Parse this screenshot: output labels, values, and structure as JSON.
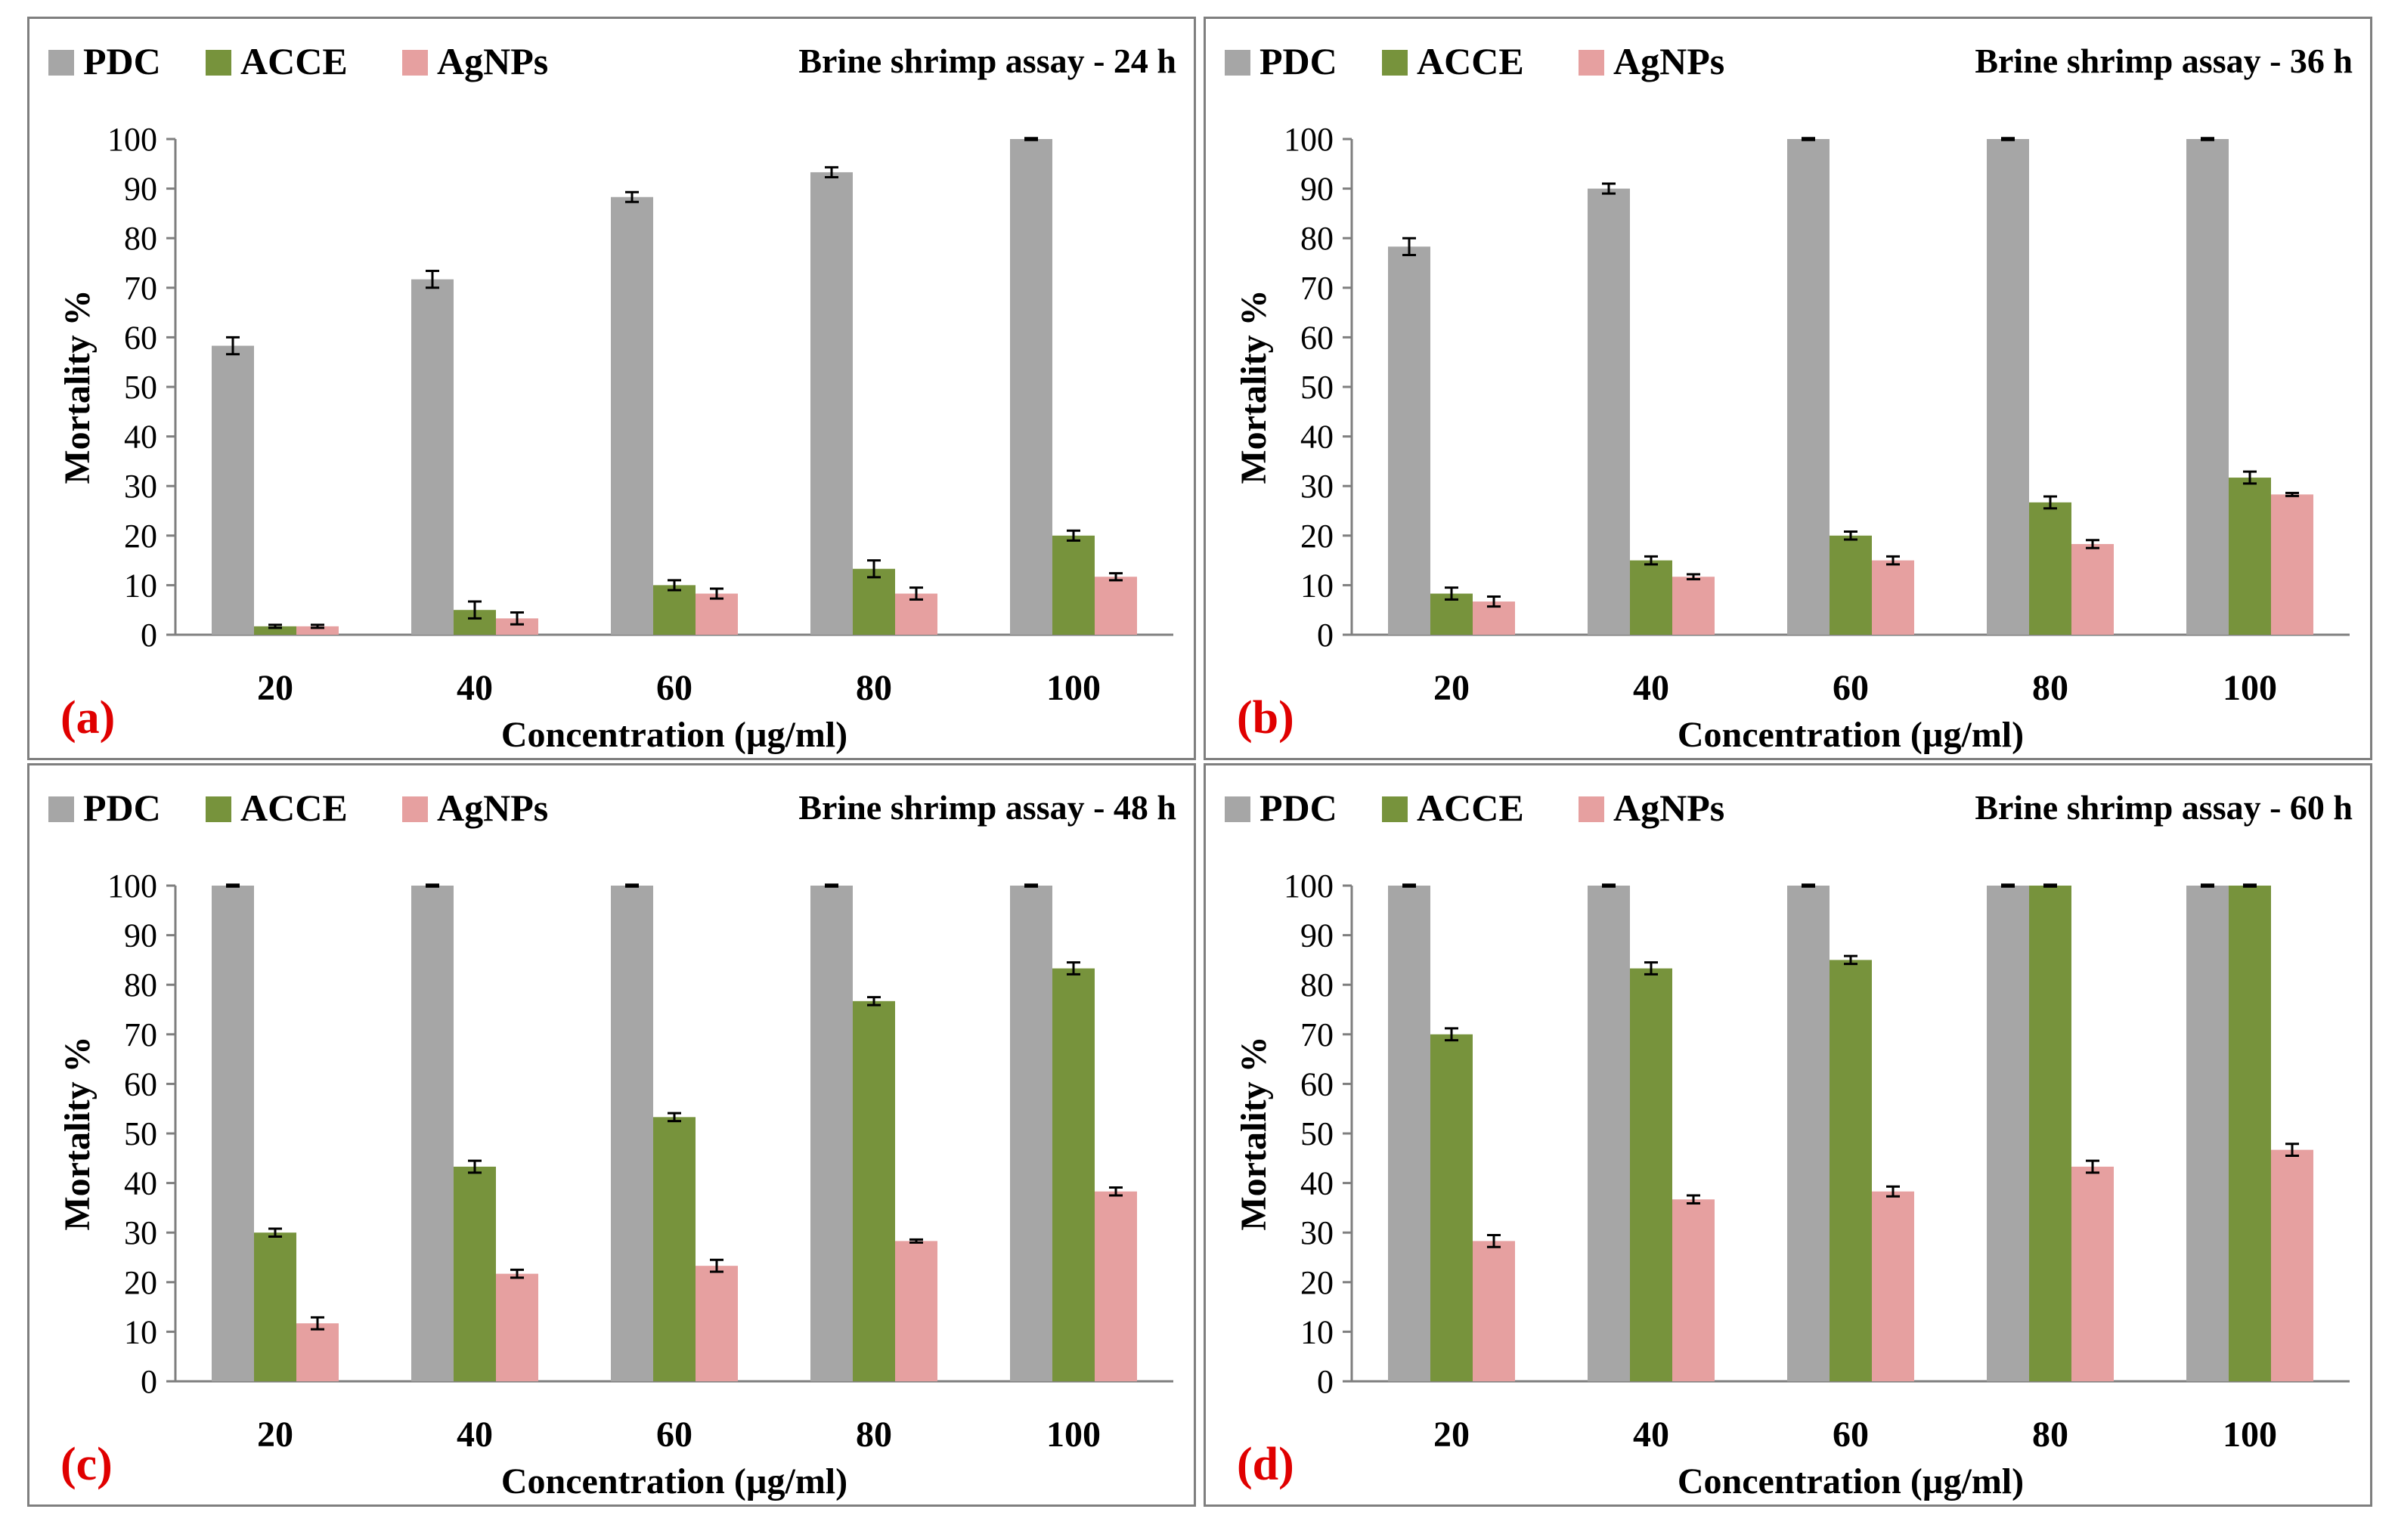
{
  "chart_data": [
    {
      "panel_label": "(a)",
      "type": "bar",
      "title": "Brine shrimp  assay - 24 h",
      "xlabel": "Concentration (µg/ml)",
      "ylabel": "Mortality %",
      "ylim": [
        0,
        100
      ],
      "yticks": [
        0,
        10,
        20,
        30,
        40,
        50,
        60,
        70,
        80,
        90,
        100
      ],
      "categories": [
        "20",
        "40",
        "60",
        "80",
        "100"
      ],
      "legend_position": "top-left",
      "series": [
        {
          "name": "PDC",
          "color": "#a6a6a6",
          "values": [
            58.3,
            71.7,
            88.3,
            93.3,
            100
          ],
          "errors": [
            1.7,
            1.7,
            1.0,
            1.0,
            0.2
          ]
        },
        {
          "name": "ACCE",
          "color": "#77933c",
          "values": [
            1.7,
            5.0,
            10.0,
            13.3,
            20.0
          ],
          "errors": [
            0.3,
            1.7,
            1.0,
            1.7,
            1.0
          ]
        },
        {
          "name": "AgNPs",
          "color": "#e6a0a0",
          "values": [
            1.7,
            3.3,
            8.3,
            8.3,
            11.7
          ],
          "errors": [
            0.3,
            1.2,
            1.0,
            1.2,
            0.7
          ]
        }
      ]
    },
    {
      "panel_label": "(b)",
      "type": "bar",
      "title": "Brine shrimp  assay - 36 h",
      "xlabel": "Concentration (µg/ml)",
      "ylabel": "Mortality %",
      "ylim": [
        0,
        100
      ],
      "yticks": [
        0,
        10,
        20,
        30,
        40,
        50,
        60,
        70,
        80,
        90,
        100
      ],
      "categories": [
        "20",
        "40",
        "60",
        "80",
        "100"
      ],
      "legend_position": "top-left",
      "series": [
        {
          "name": "PDC",
          "color": "#a6a6a6",
          "values": [
            78.3,
            90.0,
            100,
            100,
            100
          ],
          "errors": [
            1.7,
            1.0,
            0.2,
            0.2,
            0.2
          ]
        },
        {
          "name": "ACCE",
          "color": "#77933c",
          "values": [
            8.3,
            15.0,
            20.0,
            26.7,
            31.7
          ],
          "errors": [
            1.2,
            0.8,
            0.8,
            1.2,
            1.2
          ]
        },
        {
          "name": "AgNPs",
          "color": "#e6a0a0",
          "values": [
            6.7,
            11.7,
            15.0,
            18.3,
            28.3
          ],
          "errors": [
            1.0,
            0.5,
            0.8,
            0.8,
            0.3
          ]
        }
      ]
    },
    {
      "panel_label": "(c)",
      "type": "bar",
      "title": "Brine shrimp  assay - 48 h",
      "xlabel": "Concentration (µg/ml)",
      "ylabel": "Mortality %",
      "ylim": [
        0,
        100
      ],
      "yticks": [
        0,
        10,
        20,
        30,
        40,
        50,
        60,
        70,
        80,
        90,
        100
      ],
      "categories": [
        "20",
        "40",
        "60",
        "80",
        "100"
      ],
      "legend_position": "top-left",
      "series": [
        {
          "name": "PDC",
          "color": "#a6a6a6",
          "values": [
            100,
            100,
            100,
            100,
            100
          ],
          "errors": [
            0.2,
            0.2,
            0.2,
            0.2,
            0.2
          ]
        },
        {
          "name": "ACCE",
          "color": "#77933c",
          "values": [
            30.0,
            43.3,
            53.3,
            76.7,
            83.3
          ],
          "errors": [
            0.8,
            1.2,
            0.8,
            0.8,
            1.2
          ]
        },
        {
          "name": "AgNPs",
          "color": "#e6a0a0",
          "values": [
            11.7,
            21.7,
            23.3,
            28.3,
            38.3
          ],
          "errors": [
            1.2,
            0.8,
            1.2,
            0.3,
            0.8
          ]
        }
      ]
    },
    {
      "panel_label": "(d)",
      "type": "bar",
      "title": "Brine shrimp  assay - 60 h",
      "xlabel": "Concentration (µg/ml)",
      "ylabel": "Mortality %",
      "ylim": [
        0,
        100
      ],
      "yticks": [
        0,
        10,
        20,
        30,
        40,
        50,
        60,
        70,
        80,
        90,
        100
      ],
      "categories": [
        "20",
        "40",
        "60",
        "80",
        "100"
      ],
      "legend_position": "top-left",
      "series": [
        {
          "name": "PDC",
          "color": "#a6a6a6",
          "values": [
            100,
            100,
            100,
            100,
            100
          ],
          "errors": [
            0.2,
            0.2,
            0.2,
            0.2,
            0.2
          ]
        },
        {
          "name": "ACCE",
          "color": "#77933c",
          "values": [
            70.0,
            83.3,
            85.0,
            100,
            100
          ],
          "errors": [
            1.2,
            1.2,
            0.8,
            0.2,
            0.2
          ]
        },
        {
          "name": "AgNPs",
          "color": "#e6a0a0",
          "values": [
            28.3,
            36.7,
            38.3,
            43.3,
            46.7
          ],
          "errors": [
            1.2,
            0.8,
            1.0,
            1.2,
            1.2
          ]
        }
      ]
    }
  ]
}
